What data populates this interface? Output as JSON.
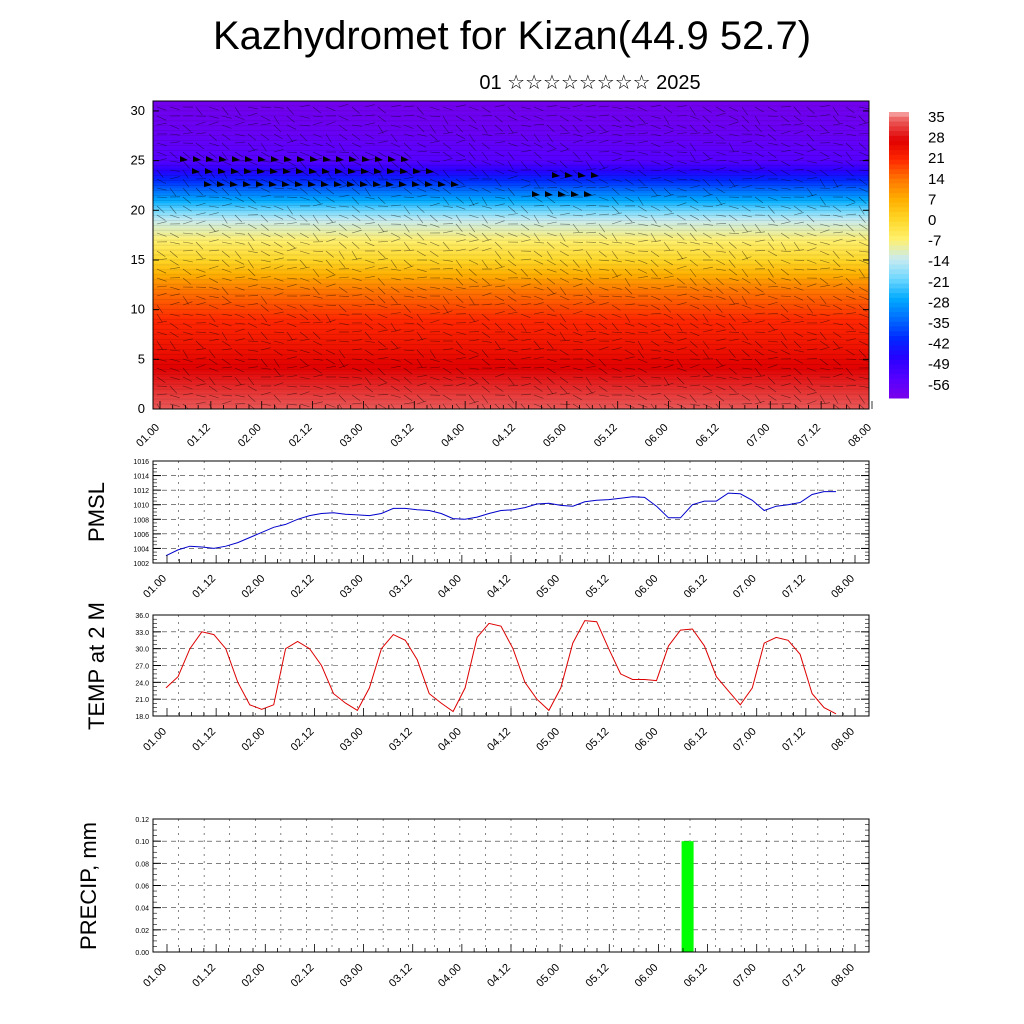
{
  "title": "Kazhydromet for Kizan(44.9 52.7)",
  "subtitle": "01 ☆☆☆☆☆☆☆☆ 2025",
  "x_tick_labels": [
    "01.00",
    "01.12",
    "02.00",
    "02.12",
    "03.00",
    "03.12",
    "04.00",
    "04.12",
    "05.00",
    "05.12",
    "06.00",
    "06.12",
    "07.00",
    "07.12",
    "08.00"
  ],
  "colors": {
    "pmsl_line": "#0000cc",
    "temp_line": "#dd0000",
    "precip_bar": "#00ff00"
  },
  "chart_data": [
    {
      "type": "heatmap",
      "name": "temperature-wind-section",
      "y_ticks": [
        "0",
        "5",
        "10",
        "15",
        "20",
        "25",
        "30"
      ],
      "ylim": [
        0,
        31
      ],
      "xlim": [
        0,
        7
      ],
      "colorbar_labels": [
        "35",
        "28",
        "21",
        "14",
        "7",
        "0",
        "-7",
        "-14",
        "-21",
        "-28",
        "-35",
        "-42",
        "-49",
        "-56"
      ],
      "colorbar_range": [
        -63,
        38
      ],
      "profile_levels": [
        0,
        3,
        6,
        9,
        12,
        15,
        17,
        19,
        21,
        23,
        25,
        28,
        31
      ],
      "profile_temps": [
        35,
        30,
        25,
        21,
        14,
        0,
        -7,
        -14,
        -28,
        -42,
        -56,
        -60,
        -62
      ]
    },
    {
      "type": "line",
      "name": "pmsl",
      "ylabel": "PMSL",
      "ylim": [
        1002,
        1016
      ],
      "y_ticks": [
        "1002",
        "1004",
        "1006",
        "1008",
        "1010",
        "1012",
        "1014",
        "1016"
      ],
      "x": [
        0,
        0.25,
        0.5,
        0.75,
        1,
        1.25,
        1.5,
        1.75,
        2,
        2.25,
        2.5,
        2.75,
        3,
        3.25,
        3.5,
        3.75,
        4,
        4.25,
        4.5,
        4.75,
        5,
        5.25,
        5.5,
        5.75,
        6,
        6.25,
        6.5,
        6.75,
        7,
        7.25,
        7.5,
        7.75,
        8,
        8.25,
        8.5,
        8.75,
        9,
        9.25,
        9.5,
        9.75,
        10,
        10.25,
        10.5,
        10.75,
        11,
        11.25,
        11.5,
        11.75,
        12,
        12.25,
        12.5,
        12.75,
        13,
        13.25,
        13.5,
        13.75,
        14
      ],
      "values": [
        1003,
        1003.8,
        1004.3,
        1004.2,
        1004,
        1004.3,
        1004.8,
        1005.5,
        1006.2,
        1006.9,
        1007.3,
        1008,
        1008.5,
        1008.8,
        1008.9,
        1008.7,
        1008.6,
        1008.5,
        1008.8,
        1009.5,
        1009.5,
        1009.3,
        1009.2,
        1008.8,
        1008.1,
        1008,
        1008.3,
        1008.8,
        1009.2,
        1009.3,
        1009.6,
        1010.1,
        1010.2,
        1009.9,
        1009.8,
        1010.4,
        1010.6,
        1010.7,
        1010.9,
        1011.1,
        1011,
        1009.8,
        1008.2,
        1008.2,
        1010,
        1010.5,
        1010.5,
        1011.6,
        1011.5,
        1010.6,
        1009.2,
        1009.8,
        1010,
        1010.3,
        1011.4,
        1011.8,
        1011.8
      ]
    },
    {
      "type": "line",
      "name": "temp-2m",
      "ylabel": "TEMP at 2 M",
      "ylim": [
        18,
        36
      ],
      "y_ticks": [
        "18.0",
        "21.0",
        "24.0",
        "27.0",
        "30.0",
        "33.0",
        "36.0"
      ],
      "x": [
        0,
        0.25,
        0.5,
        0.75,
        1,
        1.25,
        1.5,
        1.75,
        2,
        2.25,
        2.5,
        2.75,
        3,
        3.25,
        3.5,
        3.75,
        4,
        4.25,
        4.5,
        4.75,
        5,
        5.25,
        5.5,
        5.75,
        6,
        6.25,
        6.5,
        6.75,
        7,
        7.25,
        7.5,
        7.75,
        8,
        8.25,
        8.5,
        8.75,
        9,
        9.25,
        9.5,
        9.75,
        10,
        10.25,
        10.5,
        10.75,
        11,
        11.25,
        11.5,
        11.75,
        12,
        12.25,
        12.5,
        12.75,
        13,
        13.25,
        13.5,
        13.75,
        14
      ],
      "values": [
        23,
        25,
        30,
        33,
        32.5,
        30,
        24,
        20,
        19.2,
        20,
        30,
        31.3,
        30,
        27,
        22,
        20.3,
        19,
        23,
        30,
        32.5,
        31.5,
        28,
        22,
        20.3,
        18.8,
        23,
        32,
        34.5,
        34,
        30,
        24,
        21,
        19,
        23,
        31,
        35,
        34.8,
        30,
        25.5,
        24.5,
        24.5,
        24.3,
        30.5,
        33.3,
        33.5,
        30.5,
        25,
        22.5,
        20,
        23,
        31,
        32,
        31.5,
        29,
        22,
        19.5,
        18.4
      ]
    },
    {
      "type": "bar",
      "name": "precip",
      "ylabel": "PRECIP, mm",
      "ylim": [
        0,
        0.12
      ],
      "y_ticks": [
        "0.00",
        "0.02",
        "0.04",
        "0.06",
        "0.08",
        "0.10",
        "0.12"
      ],
      "bars": [
        {
          "x": 10.9,
          "value": 0.1
        }
      ]
    }
  ]
}
